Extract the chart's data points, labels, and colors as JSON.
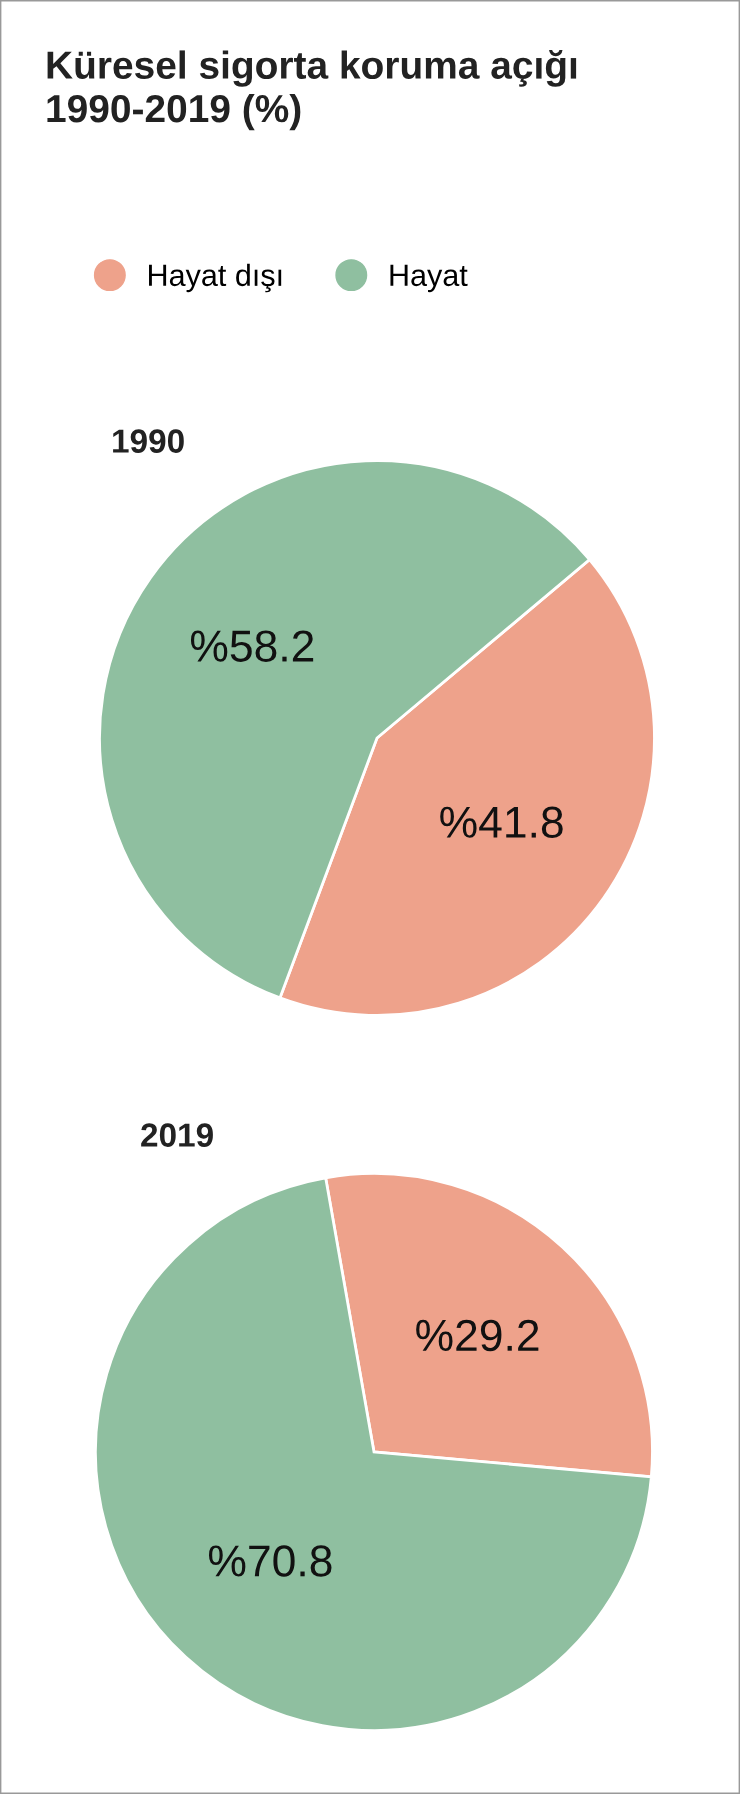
{
  "chart_data": [
    {
      "type": "pie",
      "title": "Küresel sigorta koruma açığı\n1990-2019 (%)",
      "subtitle": "1990",
      "categories": [
        "Hayat dışı",
        "Hayat"
      ],
      "values": [
        41.8,
        58.2
      ],
      "colors": [
        "#eea28b",
        "#8fbfa0"
      ],
      "value_labels": [
        "%41.8",
        "%58.2"
      ],
      "legend": "top"
    },
    {
      "type": "pie",
      "subtitle": "2019",
      "values": [
        29.2,
        70.8
      ],
      "colors": [
        "#eea28b",
        "#8fbfa0"
      ],
      "value_labels": [
        "%29.2",
        "%70.8"
      ]
    }
  ]
}
